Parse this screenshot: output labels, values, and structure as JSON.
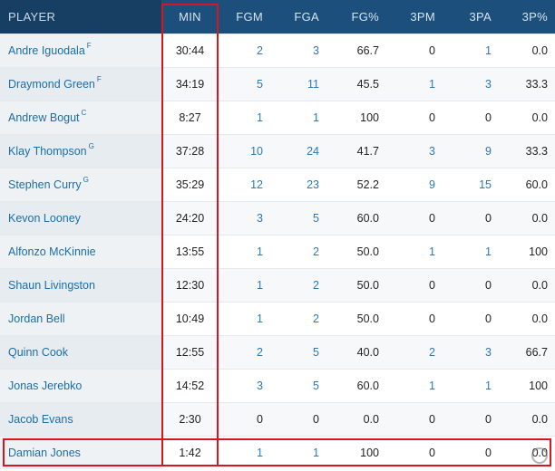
{
  "columns": [
    "PLAYER",
    "MIN",
    "FGM",
    "FGA",
    "FG%",
    "3PM",
    "3PA",
    "3P%"
  ],
  "players": [
    {
      "name": "Andre Iguodala",
      "pos": "F",
      "min": "30:44",
      "fgm": "2",
      "fga": "3",
      "fg_pct": "66.7",
      "tpm": "0",
      "tpa": "1",
      "tp_pct": "0.0"
    },
    {
      "name": "Draymond Green",
      "pos": "F",
      "min": "34:19",
      "fgm": "5",
      "fga": "11",
      "fg_pct": "45.5",
      "tpm": "1",
      "tpa": "3",
      "tp_pct": "33.3"
    },
    {
      "name": "Andrew Bogut",
      "pos": "C",
      "min": "8:27",
      "fgm": "1",
      "fga": "1",
      "fg_pct": "100",
      "tpm": "0",
      "tpa": "0",
      "tp_pct": "0.0"
    },
    {
      "name": "Klay Thompson",
      "pos": "G",
      "min": "37:28",
      "fgm": "10",
      "fga": "24",
      "fg_pct": "41.7",
      "tpm": "3",
      "tpa": "9",
      "tp_pct": "33.3"
    },
    {
      "name": "Stephen Curry",
      "pos": "G",
      "min": "35:29",
      "fgm": "12",
      "fga": "23",
      "fg_pct": "52.2",
      "tpm": "9",
      "tpa": "15",
      "tp_pct": "60.0"
    },
    {
      "name": "Kevon Looney",
      "pos": "",
      "min": "24:20",
      "fgm": "3",
      "fga": "5",
      "fg_pct": "60.0",
      "tpm": "0",
      "tpa": "0",
      "tp_pct": "0.0"
    },
    {
      "name": "Alfonzo McKinnie",
      "pos": "",
      "min": "13:55",
      "fgm": "1",
      "fga": "2",
      "fg_pct": "50.0",
      "tpm": "1",
      "tpa": "1",
      "tp_pct": "100"
    },
    {
      "name": "Shaun Livingston",
      "pos": "",
      "min": "12:30",
      "fgm": "1",
      "fga": "2",
      "fg_pct": "50.0",
      "tpm": "0",
      "tpa": "0",
      "tp_pct": "0.0"
    },
    {
      "name": "Jordan Bell",
      "pos": "",
      "min": "10:49",
      "fgm": "1",
      "fga": "2",
      "fg_pct": "50.0",
      "tpm": "0",
      "tpa": "0",
      "tp_pct": "0.0"
    },
    {
      "name": "Quinn Cook",
      "pos": "",
      "min": "12:55",
      "fgm": "2",
      "fga": "5",
      "fg_pct": "40.0",
      "tpm": "2",
      "tpa": "3",
      "tp_pct": "66.7"
    },
    {
      "name": "Jonas Jerebko",
      "pos": "",
      "min": "14:52",
      "fgm": "3",
      "fga": "5",
      "fg_pct": "60.0",
      "tpm": "1",
      "tpa": "1",
      "tp_pct": "100"
    },
    {
      "name": "Jacob Evans",
      "pos": "",
      "min": "2:30",
      "fgm": "0",
      "fga": "0",
      "fg_pct": "0.0",
      "tpm": "0",
      "tpa": "0",
      "tp_pct": "0.0"
    },
    {
      "name": "Damian Jones",
      "pos": "",
      "min": "1:42",
      "fgm": "1",
      "fga": "1",
      "fg_pct": "100",
      "tpm": "0",
      "tpa": "0",
      "tp_pct": "0.0"
    }
  ],
  "link_fields": [
    "fgm",
    "fga",
    "tpm",
    "tpa"
  ],
  "colors": {
    "header_bg": "#1d4f7c",
    "player_header_bg": "#173f63",
    "link": "#2a7ab8",
    "highlight": "#d6181e"
  }
}
